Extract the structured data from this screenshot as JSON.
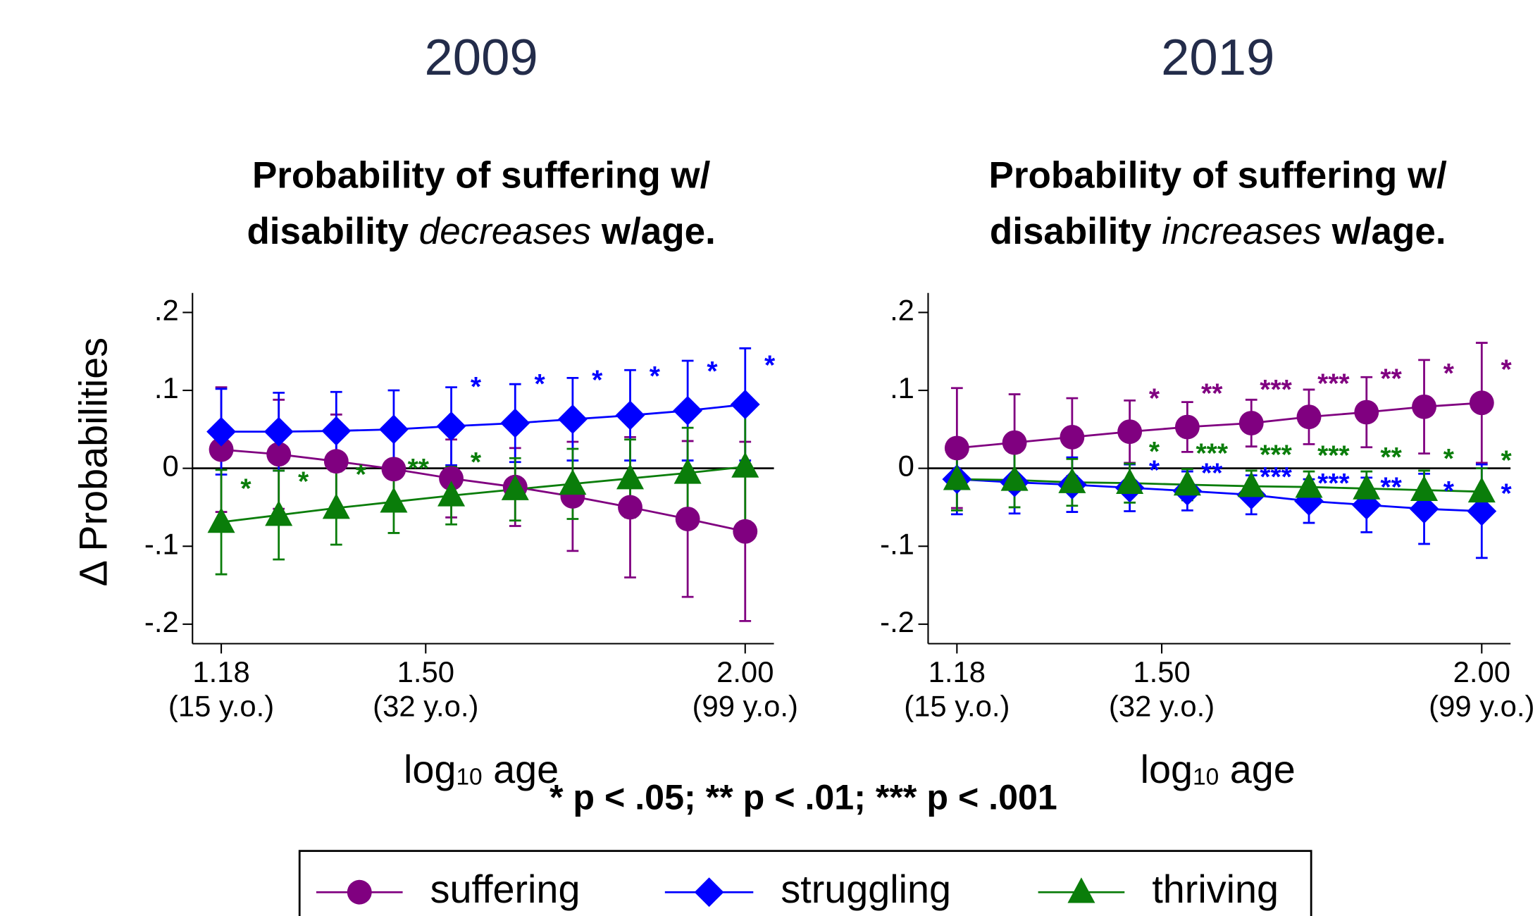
{
  "chart_data": [
    {
      "type": "line",
      "title": "2009",
      "subtitle": {
        "line1": "Probability of suffering w/",
        "line2_start": "disability",
        "line2_italic": "decreases",
        "line2_end": "w/age."
      },
      "ylabel": "Δ Probabilities",
      "xlabel": {
        "text": "log",
        "subscript": "10",
        "rest": "age"
      },
      "x": [
        1.18,
        1.27,
        1.36,
        1.45,
        1.54,
        1.64,
        1.73,
        1.82,
        1.91,
        2.0
      ],
      "xlim": [
        1.135,
        2.045
      ],
      "xticks": [
        {
          "value": 1.18,
          "label": "1.18",
          "age": "(15 y.o.)"
        },
        {
          "value": 1.5,
          "label": "1.50",
          "age": "(32 y.o.)"
        },
        {
          "value": 2.0,
          "label": "2.00",
          "age": "(99 y.o.)"
        }
      ],
      "ylim": [
        -0.225,
        0.225
      ],
      "yticks": [
        {
          "value": -0.2,
          "label": "-.2"
        },
        {
          "value": -0.1,
          "label": "-.1"
        },
        0,
        {
          "value": 0.1,
          "label": ".1"
        },
        {
          "value": 0.2,
          "label": ".2"
        }
      ],
      "zero_line": true,
      "series": [
        {
          "name": "suffering",
          "color": "#800080",
          "marker": "circle",
          "values": [
            0.024,
            0.018,
            0.009,
            -0.001,
            -0.013,
            -0.024,
            -0.036,
            -0.05,
            -0.065,
            -0.081
          ],
          "errors": [
            0.08,
            0.07,
            0.06,
            0.05,
            0.05,
            0.05,
            0.07,
            0.09,
            0.1,
            0.115
          ],
          "significance": [
            null,
            null,
            null,
            null,
            null,
            null,
            null,
            null,
            null,
            null
          ]
        },
        {
          "name": "struggling",
          "color": "#0000ff",
          "marker": "diamond",
          "values": [
            0.047,
            0.047,
            0.048,
            0.05,
            0.054,
            0.058,
            0.063,
            0.068,
            0.074,
            0.082
          ],
          "errors": [
            0.055,
            0.05,
            0.05,
            0.05,
            0.05,
            0.05,
            0.053,
            0.058,
            0.064,
            0.072
          ],
          "significance": [
            null,
            null,
            null,
            null,
            "*",
            "*",
            "*",
            "*",
            "*",
            "*"
          ]
        },
        {
          "name": "thriving",
          "color": "#0a7d0a",
          "marker": "triangle",
          "values": [
            -0.069,
            -0.06,
            -0.051,
            -0.043,
            -0.035,
            -0.027,
            -0.02,
            -0.013,
            -0.006,
            0.002
          ],
          "errors": [
            0.067,
            0.057,
            0.047,
            0.04,
            0.037,
            0.04,
            0.045,
            0.05,
            0.058,
            0.07
          ],
          "significance": [
            "*",
            "*",
            "*",
            "**",
            "*",
            null,
            null,
            null,
            null,
            null
          ]
        }
      ]
    },
    {
      "type": "line",
      "title": "2019",
      "subtitle": {
        "line1": "Probability of suffering w/",
        "line2_start": "disability",
        "line2_italic": "increases",
        "line2_end": "w/age."
      },
      "xlabel": {
        "text": "log",
        "subscript": "10",
        "rest": "age"
      },
      "x": [
        1.18,
        1.27,
        1.36,
        1.45,
        1.54,
        1.64,
        1.73,
        1.82,
        1.91,
        2.0
      ],
      "xlim": [
        1.135,
        2.045
      ],
      "xticks": [
        {
          "value": 1.18,
          "label": "1.18",
          "age": "(15 y.o.)"
        },
        {
          "value": 1.5,
          "label": "1.50",
          "age": "(32 y.o.)"
        },
        {
          "value": 2.0,
          "label": "2.00",
          "age": "(99 y.o.)"
        }
      ],
      "ylim": [
        -0.225,
        0.225
      ],
      "yticks": [
        {
          "value": -0.2,
          "label": "-.2"
        },
        {
          "value": -0.1,
          "label": "-.1"
        },
        0,
        {
          "value": 0.1,
          "label": ".1"
        },
        {
          "value": 0.2,
          "label": ".2"
        }
      ],
      "zero_line": true,
      "series": [
        {
          "color": "#800080",
          "marker": "circle",
          "values": [
            0.026,
            0.033,
            0.04,
            0.047,
            0.053,
            0.058,
            0.066,
            0.072,
            0.079,
            0.084
          ],
          "errors": [
            0.077,
            0.062,
            0.05,
            0.04,
            0.032,
            0.03,
            0.035,
            0.045,
            0.06,
            0.077
          ],
          "significance": [
            null,
            null,
            null,
            "*",
            "**",
            "***",
            "***",
            "**",
            "*",
            "*"
          ]
        },
        {
          "color": "#0000ff",
          "marker": "diamond",
          "values": [
            -0.014,
            -0.018,
            -0.021,
            -0.025,
            -0.029,
            -0.034,
            -0.042,
            -0.047,
            -0.052,
            -0.055
          ],
          "errors": [
            0.045,
            0.04,
            0.035,
            0.03,
            0.025,
            0.025,
            0.028,
            0.035,
            0.045,
            0.06
          ],
          "significance": [
            null,
            null,
            null,
            "*",
            "**",
            "***",
            "***",
            "**",
            "*",
            "*"
          ]
        },
        {
          "color": "#0a7d0a",
          "marker": "triangle",
          "values": [
            -0.014,
            -0.015,
            -0.018,
            -0.019,
            -0.021,
            -0.023,
            -0.024,
            -0.026,
            -0.028,
            -0.03
          ],
          "errors": [
            0.04,
            0.035,
            0.03,
            0.025,
            0.02,
            0.02,
            0.02,
            0.022,
            0.025,
            0.03
          ],
          "significance": [
            null,
            null,
            null,
            "*",
            "***",
            "***",
            "***",
            "**",
            "*",
            "*"
          ]
        }
      ]
    }
  ],
  "note": "* p < .05; ** p < .01; *** p < .001"
}
